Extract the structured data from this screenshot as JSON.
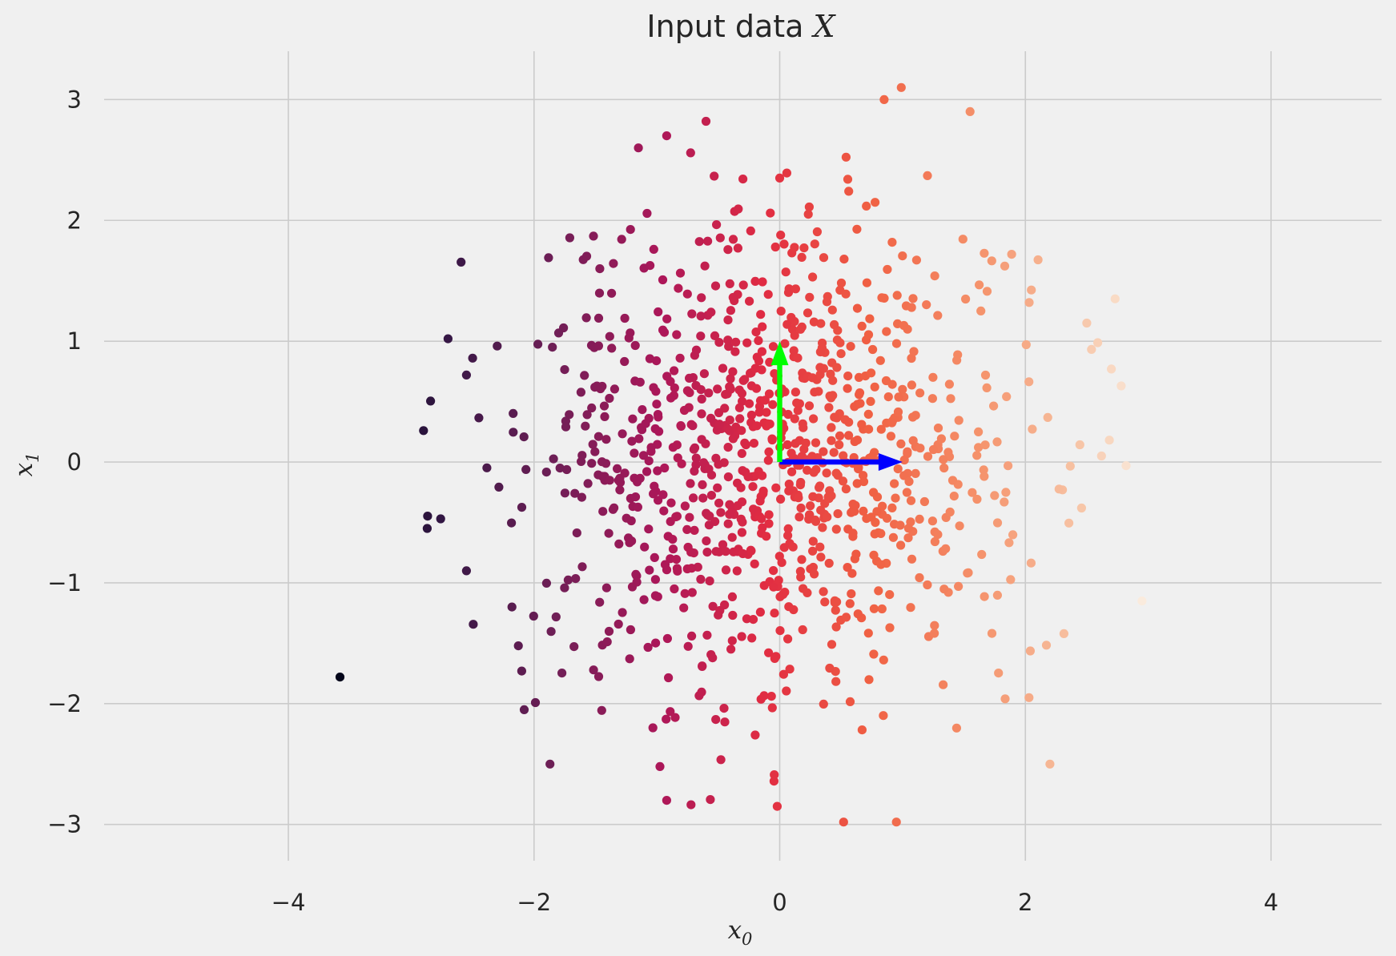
{
  "chart_data": {
    "type": "scatter",
    "title": "Input data",
    "title_math": "X",
    "xlabel": "x",
    "xlabel_sub": "0",
    "ylabel": "x",
    "ylabel_sub": "1",
    "xlim": [
      -5.5,
      4.9
    ],
    "ylim": [
      -3.3,
      3.4
    ],
    "xticks": [
      -4,
      -2,
      0,
      2,
      4
    ],
    "yticks": [
      -3,
      -2,
      -1,
      0,
      1,
      2,
      3
    ],
    "xtick_labels": [
      "−4",
      "−2",
      "0",
      "2",
      "4"
    ],
    "ytick_labels": [
      "−3",
      "−2",
      "−1",
      "0",
      "1",
      "2",
      "3"
    ],
    "grid": true,
    "background": "#f0f0f0",
    "grid_color": "#cbcbcb",
    "colormap": "rocket",
    "color_by": "x",
    "color_range": [
      -3.58,
      2.95
    ],
    "point_count": 1000,
    "random_seed": 7,
    "notable_points": [
      {
        "x": -3.58,
        "y": -1.78
      },
      {
        "x": -2.9,
        "y": 0.26
      },
      {
        "x": -2.87,
        "y": -0.55
      },
      {
        "x": -2.76,
        "y": -0.47
      },
      {
        "x": -2.7,
        "y": 1.02
      },
      {
        "x": -2.55,
        "y": -0.9
      },
      {
        "x": -2.5,
        "y": 0.86
      },
      {
        "x": -2.55,
        "y": 0.72
      },
      {
        "x": -2.3,
        "y": 0.96
      },
      {
        "x": -2.18,
        "y": -1.2
      },
      {
        "x": -2.1,
        "y": -1.73
      },
      {
        "x": -2.08,
        "y": -2.05
      },
      {
        "x": -1.87,
        "y": -2.5
      },
      {
        "x": -0.92,
        "y": -2.8
      },
      {
        "x": -0.6,
        "y": 2.82
      },
      {
        "x": -1.15,
        "y": 2.6
      },
      {
        "x": -0.92,
        "y": 2.7
      },
      {
        "x": 0.85,
        "y": 3.0
      },
      {
        "x": 0.99,
        "y": 3.1
      },
      {
        "x": 1.55,
        "y": 2.9
      },
      {
        "x": 0.0,
        "y": 2.35
      },
      {
        "x": 0.52,
        "y": -2.98
      },
      {
        "x": 0.95,
        "y": -2.98
      },
      {
        "x": -0.02,
        "y": -2.85
      },
      {
        "x": 2.2,
        "y": -2.5
      },
      {
        "x": 2.03,
        "y": -1.95
      },
      {
        "x": 2.95,
        "y": -1.15
      },
      {
        "x": 2.78,
        "y": 0.63
      },
      {
        "x": 2.7,
        "y": 0.77
      },
      {
        "x": 2.5,
        "y": 1.15
      },
      {
        "x": 2.82,
        "y": -0.03
      },
      {
        "x": 2.62,
        "y": 0.05
      }
    ],
    "vectors": [
      {
        "from": [
          0,
          0
        ],
        "to": [
          1,
          0
        ],
        "color": "#0000ff"
      },
      {
        "from": [
          0,
          0
        ],
        "to": [
          0,
          1
        ],
        "color": "#00ff00"
      }
    ]
  }
}
